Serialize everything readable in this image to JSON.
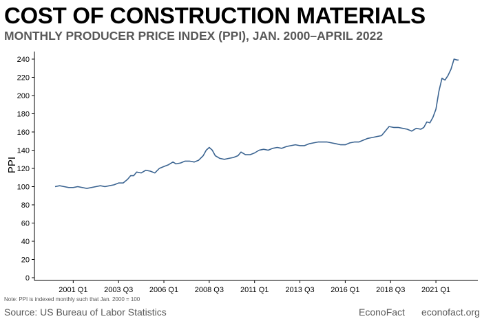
{
  "header": {
    "title": "COST OF CONSTRUCTION MATERIALS",
    "subtitle": "MONTHLY PRODUCER PRICE INDEX (PPI), JAN. 2000–APRIL 2022"
  },
  "footer": {
    "note": "Note: PPI is indexed monthly such that Jan. 2000 = 100",
    "source": "Source: US Bureau of Labor Statistics",
    "brand": "EconoFact",
    "site": "econofact.org"
  },
  "colors": {
    "line": "#3b6491",
    "axis": "#000000",
    "subtitle": "#595959"
  },
  "chart_data": {
    "type": "line",
    "title": "COST OF CONSTRUCTION MATERIALS",
    "subtitle": "MONTHLY PRODUCER PRICE INDEX (PPI), JAN. 2000–APRIL 2022",
    "xlabel": "",
    "ylabel": "PPI",
    "ylim": [
      0,
      245
    ],
    "yticks": [
      0,
      20,
      40,
      60,
      80,
      100,
      120,
      140,
      160,
      180,
      200,
      220,
      240
    ],
    "xlim": [
      "2000-01",
      "2022-04"
    ],
    "xticks": [
      {
        "label": "2001 Q1",
        "date": "2001-01"
      },
      {
        "label": "2003 Q3",
        "date": "2003-07"
      },
      {
        "label": "2006 Q1",
        "date": "2006-01"
      },
      {
        "label": "2008 Q3",
        "date": "2008-07"
      },
      {
        "label": "2011 Q1",
        "date": "2011-01"
      },
      {
        "label": "2013 Q3",
        "date": "2013-07"
      },
      {
        "label": "2016 Q1",
        "date": "2016-01"
      },
      {
        "label": "2018 Q3",
        "date": "2018-07"
      },
      {
        "label": "2021 Q1",
        "date": "2021-01"
      }
    ],
    "grid": false,
    "legend": "none",
    "series": [
      {
        "points": [
          [
            "2000-01",
            100
          ],
          [
            "2000-04",
            101
          ],
          [
            "2000-07",
            100
          ],
          [
            "2000-10",
            99
          ],
          [
            "2001-01",
            99
          ],
          [
            "2001-04",
            100
          ],
          [
            "2001-07",
            99
          ],
          [
            "2001-10",
            98
          ],
          [
            "2002-01",
            99
          ],
          [
            "2002-04",
            100
          ],
          [
            "2002-07",
            101
          ],
          [
            "2002-10",
            100
          ],
          [
            "2003-01",
            101
          ],
          [
            "2003-04",
            102
          ],
          [
            "2003-07",
            104
          ],
          [
            "2003-10",
            104
          ],
          [
            "2004-01",
            108
          ],
          [
            "2004-03",
            112
          ],
          [
            "2004-05",
            112
          ],
          [
            "2004-07",
            116
          ],
          [
            "2004-10",
            115
          ],
          [
            "2005-01",
            118
          ],
          [
            "2005-04",
            117
          ],
          [
            "2005-07",
            115
          ],
          [
            "2005-10",
            120
          ],
          [
            "2006-01",
            122
          ],
          [
            "2006-04",
            124
          ],
          [
            "2006-07",
            127
          ],
          [
            "2006-09",
            125
          ],
          [
            "2006-12",
            126
          ],
          [
            "2007-03",
            128
          ],
          [
            "2007-06",
            128
          ],
          [
            "2007-09",
            127
          ],
          [
            "2007-12",
            129
          ],
          [
            "2008-03",
            134
          ],
          [
            "2008-05",
            140
          ],
          [
            "2008-07",
            143
          ],
          [
            "2008-09",
            140
          ],
          [
            "2008-11",
            134
          ],
          [
            "2009-02",
            131
          ],
          [
            "2009-05",
            130
          ],
          [
            "2009-08",
            131
          ],
          [
            "2009-11",
            132
          ],
          [
            "2010-02",
            134
          ],
          [
            "2010-04",
            138
          ],
          [
            "2010-07",
            135
          ],
          [
            "2010-10",
            135
          ],
          [
            "2011-01",
            137
          ],
          [
            "2011-04",
            140
          ],
          [
            "2011-07",
            141
          ],
          [
            "2011-10",
            140
          ],
          [
            "2012-01",
            142
          ],
          [
            "2012-04",
            143
          ],
          [
            "2012-07",
            142
          ],
          [
            "2012-10",
            144
          ],
          [
            "2013-01",
            145
          ],
          [
            "2013-04",
            146
          ],
          [
            "2013-07",
            145
          ],
          [
            "2013-10",
            145
          ],
          [
            "2014-01",
            147
          ],
          [
            "2014-04",
            148
          ],
          [
            "2014-07",
            149
          ],
          [
            "2014-10",
            149
          ],
          [
            "2015-01",
            149
          ],
          [
            "2015-04",
            148
          ],
          [
            "2015-07",
            147
          ],
          [
            "2015-10",
            146
          ],
          [
            "2016-01",
            146
          ],
          [
            "2016-04",
            148
          ],
          [
            "2016-07",
            149
          ],
          [
            "2016-10",
            149
          ],
          [
            "2017-01",
            151
          ],
          [
            "2017-04",
            153
          ],
          [
            "2017-07",
            154
          ],
          [
            "2017-10",
            155
          ],
          [
            "2018-01",
            156
          ],
          [
            "2018-03",
            160
          ],
          [
            "2018-06",
            166
          ],
          [
            "2018-09",
            165
          ],
          [
            "2018-12",
            165
          ],
          [
            "2019-03",
            164
          ],
          [
            "2019-06",
            163
          ],
          [
            "2019-09",
            161
          ],
          [
            "2019-12",
            164
          ],
          [
            "2020-03",
            163
          ],
          [
            "2020-05",
            165
          ],
          [
            "2020-07",
            171
          ],
          [
            "2020-09",
            170
          ],
          [
            "2020-11",
            176
          ],
          [
            "2021-01",
            185
          ],
          [
            "2021-03",
            205
          ],
          [
            "2021-05",
            219
          ],
          [
            "2021-07",
            217
          ],
          [
            "2021-09",
            222
          ],
          [
            "2021-11",
            229
          ],
          [
            "2022-01",
            240
          ],
          [
            "2022-03",
            239
          ],
          [
            "2022-04",
            239
          ]
        ]
      }
    ]
  }
}
